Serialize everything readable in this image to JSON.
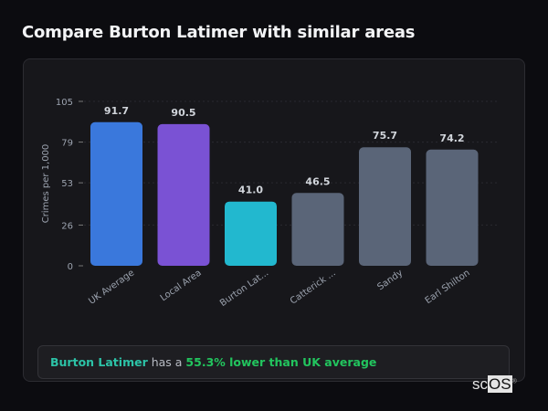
{
  "title": "Compare Burton Latimer with similar areas",
  "summary": {
    "place": "Burton Latimer",
    "middle": " has a ",
    "stat": "55.3% lower than UK average"
  },
  "logo": {
    "a": "sc",
    "b": "OS",
    "mark": "®"
  },
  "chart_data": {
    "type": "bar",
    "ylabel": "Crimes per 1,000",
    "xlabel": "",
    "ylim": [
      0,
      105
    ],
    "yticks": [
      0,
      26,
      53,
      79,
      105
    ],
    "grid": true,
    "categories": [
      "UK Average",
      "Local Area",
      "Burton Lat...",
      "Catterick ...",
      "Sandy",
      "Earl Shilton"
    ],
    "values": [
      91.7,
      90.5,
      41.0,
      46.5,
      75.7,
      74.2
    ],
    "labels": [
      "91.7",
      "90.5",
      "41.0",
      "46.5",
      "75.7",
      "74.2"
    ],
    "colors": [
      "#3a78dc",
      "#7a52d4",
      "#22b8cf",
      "#5a6578",
      "#5a6578",
      "#5a6578"
    ]
  }
}
